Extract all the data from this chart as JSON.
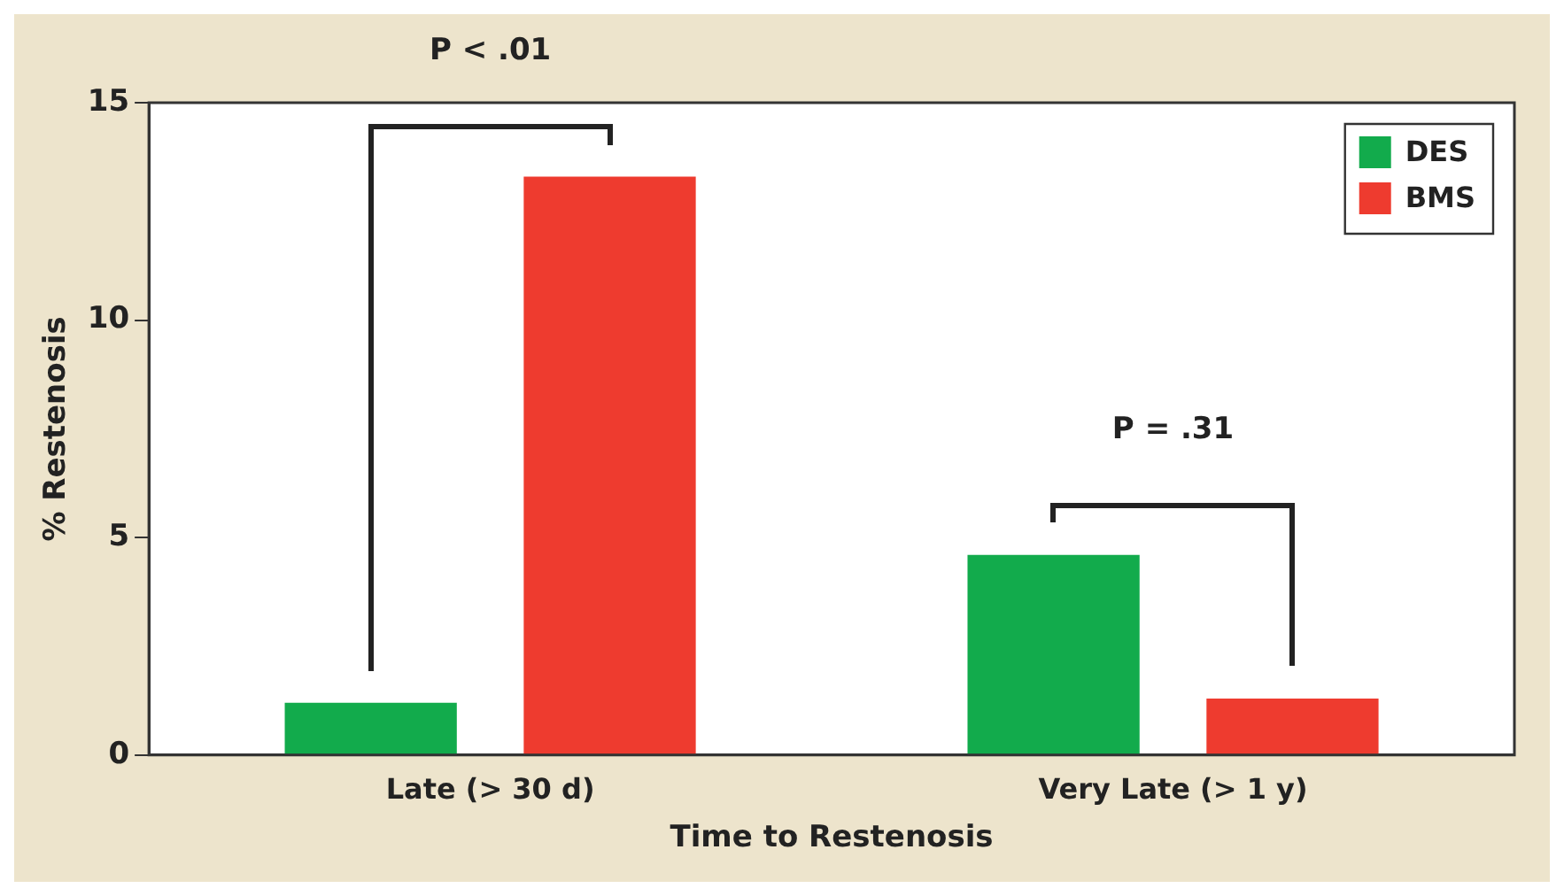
{
  "chart_data": {
    "type": "bar",
    "xlabel": "Time to Restenosis",
    "ylabel": "% Restenosis",
    "categories": [
      "Late (> 30 d)",
      "Very Late (> 1 y)"
    ],
    "series": [
      {
        "name": "DES",
        "color": "#12ab4c",
        "values": [
          1.2,
          4.6
        ]
      },
      {
        "name": "BMS",
        "color": "#ee3b2f",
        "values": [
          13.3,
          1.3
        ]
      }
    ],
    "ylim": [
      0,
      15
    ],
    "yticks": [
      0,
      5,
      10,
      15
    ],
    "grid": false,
    "legend": "top right",
    "annotations": [
      "P < .01",
      "P = .31"
    ]
  }
}
